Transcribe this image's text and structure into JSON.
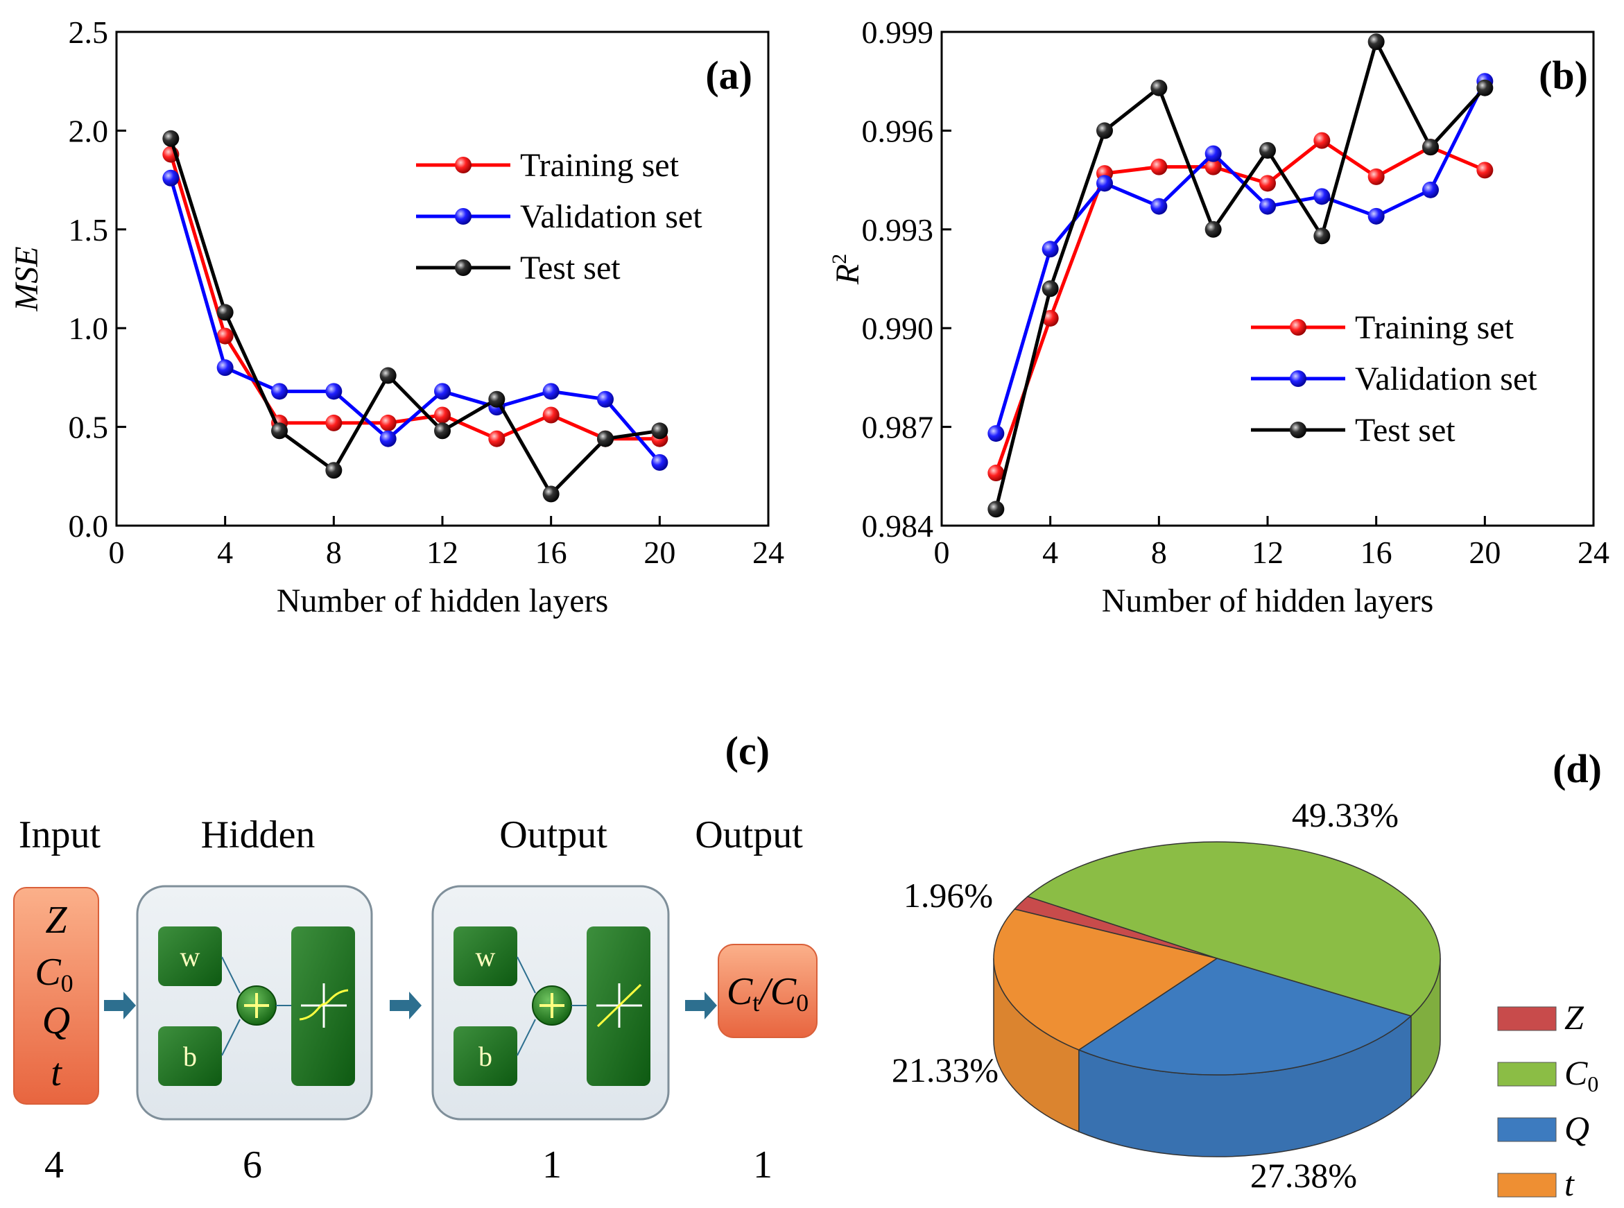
{
  "chart_data": [
    {
      "type": "line",
      "panel_label": "(a)",
      "xlabel": "Number of hidden layers",
      "ylabel": "MSE",
      "xlim": [
        0,
        24
      ],
      "ylim": [
        0,
        2.5
      ],
      "xticks": [
        0,
        4,
        8,
        12,
        16,
        20,
        24
      ],
      "yticks": [
        "0.0",
        "0.5",
        "1.0",
        "1.5",
        "2.0",
        "2.5"
      ],
      "x": [
        2,
        4,
        6,
        8,
        10,
        12,
        14,
        16,
        18,
        20
      ],
      "legend_position": "upper-right",
      "series": [
        {
          "name": "Training set",
          "color": "#ff0000",
          "values": [
            1.88,
            0.96,
            0.52,
            0.52,
            0.52,
            0.56,
            0.44,
            0.56,
            0.44,
            0.44
          ]
        },
        {
          "name": "Validation set",
          "color": "#0000ff",
          "values": [
            1.76,
            0.8,
            0.68,
            0.68,
            0.44,
            0.68,
            0.6,
            0.68,
            0.64,
            0.32
          ]
        },
        {
          "name": "Test set",
          "color": "#000000",
          "values": [
            1.96,
            1.08,
            0.48,
            0.28,
            0.76,
            0.48,
            0.64,
            0.16,
            0.44,
            0.48
          ]
        }
      ]
    },
    {
      "type": "line",
      "panel_label": "(b)",
      "xlabel": "Number of hidden layers",
      "ylabel": "R",
      "ylabel_sup": "2",
      "xlim": [
        0,
        24
      ],
      "ylim": [
        0.984,
        0.999
      ],
      "xticks": [
        0,
        4,
        8,
        12,
        16,
        20,
        24
      ],
      "yticks": [
        "0.984",
        "0.987",
        "0.990",
        "0.993",
        "0.996",
        "0.999"
      ],
      "x": [
        2,
        4,
        6,
        8,
        10,
        12,
        14,
        16,
        18,
        20
      ],
      "legend_position": "lower-right",
      "series": [
        {
          "name": "Training set",
          "color": "#ff0000",
          "values": [
            0.9856,
            0.9903,
            0.9947,
            0.9949,
            0.9949,
            0.9944,
            0.9957,
            0.9946,
            0.9955,
            0.9948
          ]
        },
        {
          "name": "Validation set",
          "color": "#0000ff",
          "values": [
            0.9868,
            0.9924,
            0.9944,
            0.9937,
            0.9953,
            0.9937,
            0.994,
            0.9934,
            0.9942,
            0.9975
          ]
        },
        {
          "name": "Test set",
          "color": "#000000",
          "values": [
            0.9845,
            0.9912,
            0.996,
            0.9973,
            0.993,
            0.9954,
            0.9928,
            0.9987,
            0.9955,
            0.9973
          ]
        }
      ]
    },
    {
      "type": "pie",
      "panel_label": "(d)",
      "categories": [
        "Z",
        "C0",
        "Q",
        "t"
      ],
      "values": [
        1.96,
        49.33,
        27.38,
        21.33
      ],
      "labels": [
        "1.96%",
        "49.33%",
        "27.38%",
        "21.33%"
      ],
      "colors": [
        "#c84b4b",
        "#8bbd45",
        "#3d7bbf",
        "#ee8f33"
      ],
      "legend": [
        {
          "symbol": "Z",
          "sub": ""
        },
        {
          "symbol": "C",
          "sub": "0"
        },
        {
          "symbol": "Q",
          "sub": ""
        },
        {
          "symbol": "t",
          "sub": ""
        }
      ]
    }
  ],
  "network": {
    "panel_label": "(c)",
    "headers": [
      "Input",
      "Hidden",
      "Output",
      "Output"
    ],
    "counts": [
      "4",
      "6",
      "1",
      "1"
    ],
    "inputs": [
      "Z",
      "C",
      "Q",
      "t"
    ],
    "input_sub": "0",
    "weight_label": "w",
    "bias_label": "b",
    "output_label": {
      "num": "C",
      "num_sub": "t",
      "den": "C",
      "den_sub": "0"
    }
  }
}
